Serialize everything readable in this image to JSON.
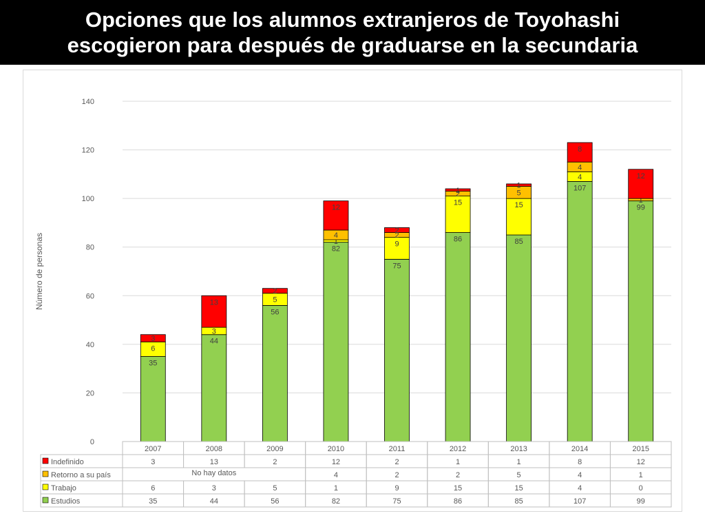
{
  "title": {
    "line1": "Opciones que los alumnos extranjeros de Toyohashi",
    "line2": "escogieron para después de graduarse en la secundaria"
  },
  "chart_data": {
    "type": "bar",
    "stacked": true,
    "ylabel": "Número de personas",
    "ylim": [
      0,
      140
    ],
    "yticks": [
      0,
      20,
      40,
      60,
      80,
      100,
      120,
      140
    ],
    "grid": true,
    "categories": [
      "2007",
      "2008",
      "2009",
      "2010",
      "2011",
      "2012",
      "2013",
      "2014",
      "2015"
    ],
    "series": [
      {
        "name": "Estudios",
        "color": "#92d050",
        "values": [
          35,
          44,
          56,
          82,
          75,
          86,
          85,
          107,
          99
        ]
      },
      {
        "name": "Trabajo",
        "color": "#ffff00",
        "values": [
          6,
          3,
          5,
          1,
          9,
          15,
          15,
          4,
          0
        ]
      },
      {
        "name": "Retorno a su país",
        "color": "#ffc000",
        "values": [
          null,
          null,
          null,
          4,
          2,
          2,
          5,
          4,
          1
        ]
      },
      {
        "name": "Indefinido",
        "color": "#ff0000",
        "values": [
          3,
          13,
          2,
          12,
          2,
          1,
          1,
          8,
          12
        ]
      }
    ],
    "table": {
      "row_order": [
        "Indefinido",
        "Retorno a su país",
        "Trabajo",
        "Estudios"
      ],
      "no_data_note": "No hay datos"
    }
  }
}
